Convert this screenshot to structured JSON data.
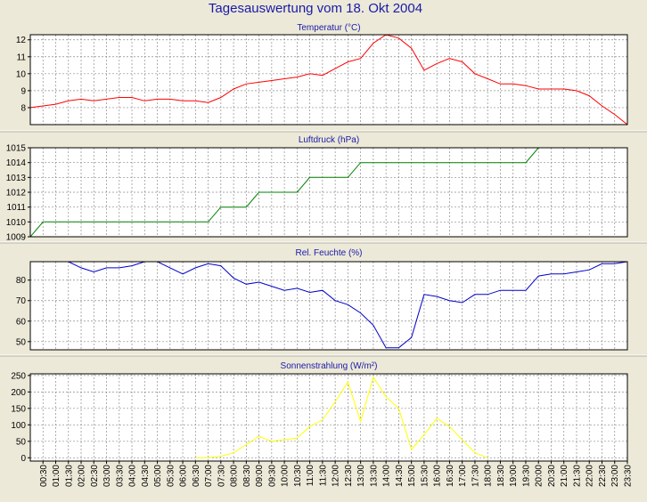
{
  "title": "Tagesauswertung vom 18. Okt 2004",
  "x_labels": [
    "00:30",
    "01:00",
    "01:30",
    "02:00",
    "02:30",
    "03:00",
    "03:30",
    "04:00",
    "04:30",
    "05:00",
    "05:30",
    "06:00",
    "06:30",
    "07:00",
    "07:30",
    "08:00",
    "08:30",
    "09:00",
    "09:30",
    "10:00",
    "10:30",
    "11:00",
    "11:30",
    "12:00",
    "12:30",
    "13:00",
    "13:30",
    "14:00",
    "14:30",
    "15:00",
    "15:30",
    "16:00",
    "16:30",
    "17:00",
    "17:30",
    "18:00",
    "18:30",
    "19:00",
    "19:30",
    "20:00",
    "20:30",
    "21:00",
    "21:30",
    "22:00",
    "22:30",
    "23:00",
    "23:30"
  ],
  "chart_data": [
    {
      "type": "line",
      "title": "Temperatur (°C)",
      "color": "#ff0000",
      "ylim": [
        7,
        12.3
      ],
      "yticks": [
        8,
        9,
        10,
        11,
        12
      ],
      "x": [
        "00:00",
        "00:30",
        "01:00",
        "01:30",
        "02:00",
        "02:30",
        "03:00",
        "03:30",
        "04:00",
        "04:30",
        "05:00",
        "05:30",
        "06:00",
        "06:30",
        "07:00",
        "07:30",
        "08:00",
        "08:30",
        "09:00",
        "09:30",
        "10:00",
        "10:30",
        "11:00",
        "11:30",
        "12:00",
        "12:30",
        "13:00",
        "13:30",
        "14:00",
        "14:30",
        "15:00",
        "15:30",
        "16:00",
        "16:30",
        "17:00",
        "17:30",
        "18:00",
        "18:30",
        "19:00",
        "19:30",
        "20:00",
        "20:30",
        "21:00",
        "21:30",
        "22:00",
        "22:30",
        "23:00",
        "23:30"
      ],
      "values": [
        8.0,
        8.1,
        8.2,
        8.4,
        8.5,
        8.4,
        8.5,
        8.6,
        8.6,
        8.4,
        8.5,
        8.5,
        8.4,
        8.4,
        8.3,
        8.6,
        9.1,
        9.4,
        9.5,
        9.6,
        9.7,
        9.8,
        10.0,
        9.9,
        10.3,
        10.7,
        10.9,
        11.8,
        12.3,
        12.1,
        11.5,
        10.2,
        10.6,
        10.9,
        10.7,
        10.0,
        9.7,
        9.4,
        9.4,
        9.3,
        9.1,
        9.1,
        9.1,
        9.0,
        8.7,
        8.1,
        7.6,
        7.0
      ]
    },
    {
      "type": "line",
      "title": "Luftdruck (hPa)",
      "color": "#008000",
      "ylim": [
        1009,
        1015
      ],
      "yticks": [
        1009,
        1010,
        1011,
        1012,
        1013,
        1014,
        1015
      ],
      "x": [
        "00:00",
        "00:30",
        "01:00",
        "01:30",
        "02:00",
        "02:30",
        "03:00",
        "03:30",
        "04:00",
        "04:30",
        "05:00",
        "05:30",
        "06:00",
        "06:30",
        "07:00",
        "07:30",
        "08:00",
        "08:30",
        "09:00",
        "09:30",
        "10:00",
        "10:30",
        "11:00",
        "11:30",
        "12:00",
        "12:30",
        "13:00",
        "13:30",
        "14:00",
        "14:30",
        "15:00",
        "15:30",
        "16:00",
        "16:30",
        "17:00",
        "17:30",
        "18:00",
        "18:30",
        "19:00",
        "19:30",
        "20:00"
      ],
      "values": [
        1009,
        1010,
        1010,
        1010,
        1010,
        1010,
        1010,
        1010,
        1010,
        1010,
        1010,
        1010,
        1010,
        1010,
        1010,
        1011,
        1011,
        1011,
        1012,
        1012,
        1012,
        1012,
        1013,
        1013,
        1013,
        1013,
        1014,
        1014,
        1014,
        1014,
        1014,
        1014,
        1014,
        1014,
        1014,
        1014,
        1014,
        1014,
        1014,
        1014,
        1015
      ]
    },
    {
      "type": "line",
      "title": "Rel. Feuchte (%)",
      "color": "#0000cc",
      "ylim": [
        46,
        89
      ],
      "yticks": [
        50,
        60,
        70,
        80
      ],
      "x": [
        "00:00",
        "00:30",
        "01:00",
        "01:30",
        "02:00",
        "02:30",
        "03:00",
        "03:30",
        "04:00",
        "04:30",
        "05:00",
        "05:30",
        "06:00",
        "06:30",
        "07:00",
        "07:30",
        "08:00",
        "08:30",
        "09:00",
        "09:30",
        "10:00",
        "10:30",
        "11:00",
        "11:30",
        "12:00",
        "12:30",
        "13:00",
        "13:30",
        "14:00",
        "14:30",
        "15:00",
        "15:30",
        "16:00",
        "16:30",
        "17:00",
        "17:30",
        "18:00",
        "18:30",
        "19:00",
        "19:30",
        "20:00",
        "20:30",
        "21:00",
        "21:30",
        "22:00",
        "22:30",
        "23:00",
        "23:30"
      ],
      "values": [
        90,
        90,
        90,
        89,
        86,
        84,
        86,
        86,
        87,
        89,
        89,
        86,
        83,
        86,
        88,
        87,
        81,
        78,
        79,
        77,
        75,
        76,
        74,
        75,
        70,
        68,
        64,
        58,
        47,
        47,
        52,
        73,
        72,
        70,
        69,
        73,
        73,
        75,
        75,
        75,
        82,
        83,
        83,
        84,
        85,
        88,
        88,
        89
      ]
    },
    {
      "type": "line",
      "title": "Sonnenstrahlung (W/m²)",
      "color": "#ffff00",
      "ylim": [
        -10,
        255
      ],
      "yticks": [
        0,
        50,
        100,
        150,
        200,
        250
      ],
      "x": [
        "06:30",
        "07:00",
        "07:30",
        "08:00",
        "08:30",
        "09:00",
        "09:30",
        "10:00",
        "10:30",
        "11:00",
        "11:30",
        "12:00",
        "12:30",
        "13:00",
        "13:30",
        "14:00",
        "14:30",
        "15:00",
        "15:30",
        "16:00",
        "16:30",
        "17:00",
        "17:30",
        "18:00"
      ],
      "values": [
        0,
        0,
        5,
        15,
        40,
        65,
        50,
        55,
        60,
        95,
        115,
        170,
        230,
        110,
        245,
        185,
        150,
        25,
        70,
        120,
        95,
        55,
        15,
        0
      ]
    }
  ]
}
